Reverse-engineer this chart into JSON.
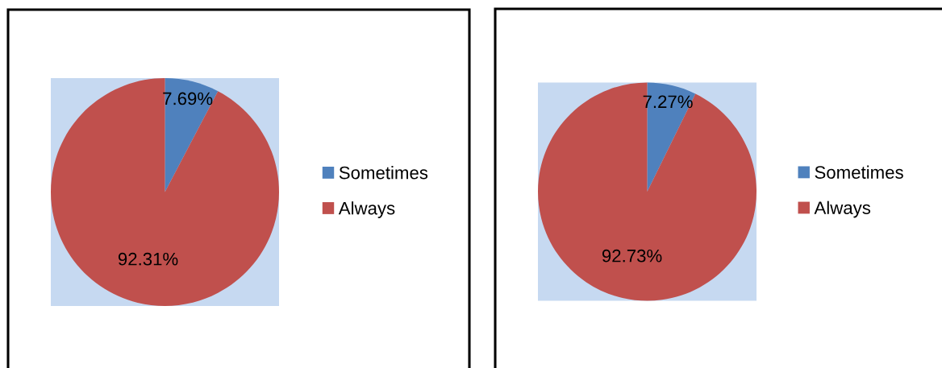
{
  "chart_data": [
    {
      "type": "pie",
      "categories": [
        "Sometimes",
        "Always"
      ],
      "values": [
        7.69,
        92.31
      ],
      "colors": [
        "#4f81bd",
        "#c0504d"
      ],
      "value_labels": [
        "7.69%",
        "92.31%"
      ],
      "legend": "right"
    },
    {
      "type": "pie",
      "categories": [
        "Sometimes",
        "Always"
      ],
      "values": [
        7.27,
        92.73
      ],
      "colors": [
        "#4f81bd",
        "#c0504d"
      ],
      "value_labels": [
        "7.27%",
        "92.73%"
      ],
      "legend": "right"
    }
  ]
}
